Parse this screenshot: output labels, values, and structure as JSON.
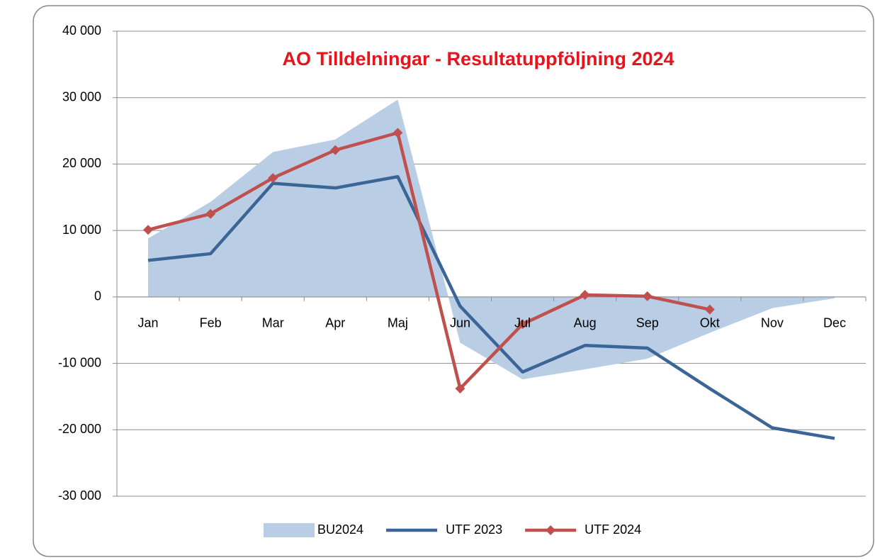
{
  "chart_data": {
    "type": "line",
    "title": "AO Tilldelningar - Resultatuppföljning 2024",
    "categories": [
      "Jan",
      "Feb",
      "Mar",
      "Apr",
      "Maj",
      "Jun",
      "Jul",
      "Aug",
      "Sep",
      "Okt",
      "Nov",
      "Dec"
    ],
    "series": [
      {
        "name": "BU2024",
        "type": "area",
        "color": "#b9cde5",
        "values": [
          8800,
          14300,
          21800,
          23700,
          29700,
          -6900,
          -12400,
          -10900,
          -9300,
          -5400,
          -1700,
          -200
        ]
      },
      {
        "name": "UTF 2023",
        "type": "line",
        "color": "#3a6596",
        "values": [
          5500,
          6500,
          17100,
          16400,
          18100,
          -1400,
          -11300,
          -7300,
          -7700,
          -13800,
          -19700,
          -21300
        ]
      },
      {
        "name": "UTF 2024",
        "type": "line",
        "marker": "diamond",
        "color": "#c0504d",
        "values": [
          10100,
          12500,
          17900,
          22100,
          24700,
          -13800,
          -4100,
          300,
          100,
          -1900,
          null,
          null
        ]
      }
    ],
    "ylim": [
      -30000,
      40000
    ],
    "yticks": [
      {
        "value": -30000,
        "label": "-30 000"
      },
      {
        "value": -20000,
        "label": "-20 000"
      },
      {
        "value": -10000,
        "label": "-10 000"
      },
      0,
      {
        "value": 10000,
        "label": "10 000"
      },
      {
        "value": 20000,
        "label": "20 000"
      },
      {
        "value": 30000,
        "label": "30 000"
      },
      {
        "value": 40000,
        "label": "40 000"
      }
    ],
    "grid": true,
    "legend": "bottom"
  }
}
